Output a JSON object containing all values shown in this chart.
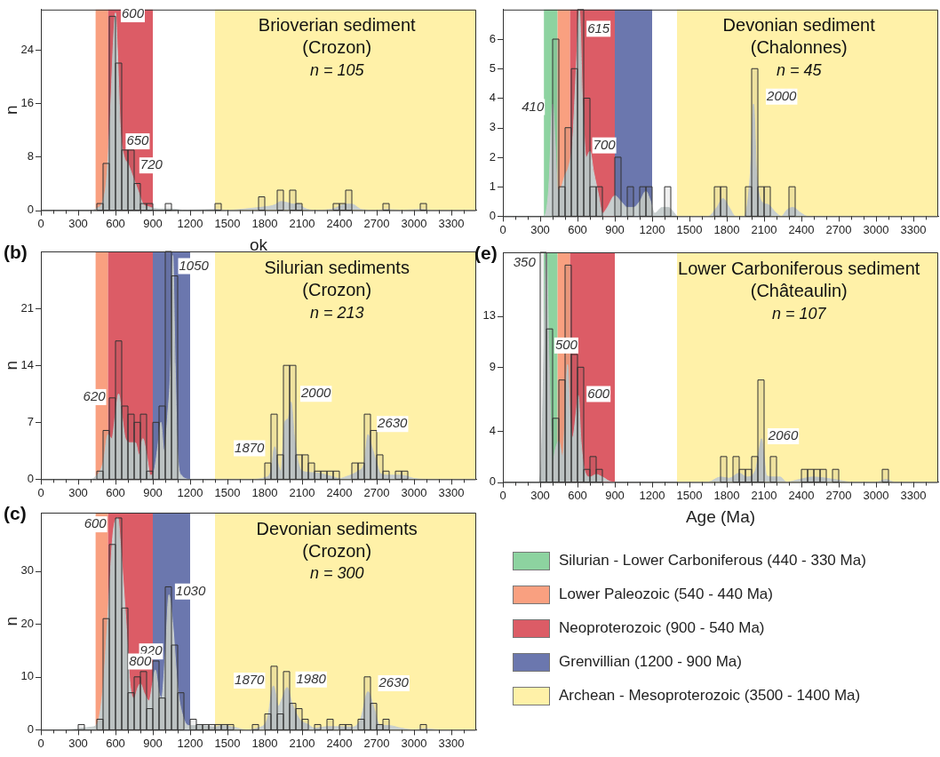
{
  "chart_data": [
    {
      "type": "histogram",
      "title": "Brioverian sediment\n(Crozon)",
      "subtitle": "n = 105",
      "ylabel": "n",
      "xlabel": "ok",
      "color": "#333333",
      "bins": [
        0,
        50,
        100,
        150,
        200,
        250,
        300,
        350,
        400,
        450,
        500,
        550,
        600,
        650,
        700,
        750,
        800,
        850,
        900,
        950,
        1000,
        1050,
        1100,
        1150,
        1200,
        1250,
        1300,
        1350,
        1400,
        1450,
        1500,
        1550,
        1600,
        1650,
        1700,
        1750,
        1800,
        1850,
        1900,
        1950,
        2000,
        2050,
        2100,
        2150,
        2200,
        2250,
        2300,
        2350,
        2400,
        2450,
        2500,
        2550,
        2600,
        2650,
        2700,
        2750,
        2800,
        2850,
        2900,
        2950,
        3000,
        3050,
        3100,
        3150,
        3200,
        3250,
        3300,
        3350,
        3400,
        3450,
        3500
      ],
      "values": [
        0,
        0,
        0,
        0,
        0,
        0,
        0,
        0,
        0,
        1,
        7,
        29,
        22,
        9,
        9,
        4,
        1,
        1,
        0,
        0,
        1,
        0,
        0,
        0,
        0,
        0,
        0,
        0,
        1,
        0,
        0,
        0,
        0,
        0,
        0,
        2,
        0,
        0,
        3,
        0,
        3,
        1,
        0,
        0,
        0,
        0,
        0,
        1,
        1,
        3,
        0,
        0,
        0,
        0,
        0,
        1,
        0,
        0,
        0,
        0,
        0,
        1,
        0,
        0,
        0,
        0,
        0,
        0,
        0,
        0
      ],
      "series": [
        {
          "type": "area",
          "color": "#c8cfcf",
          "x": [
            0,
            400,
            450,
            500,
            530,
            560,
            585,
            600,
            615,
            640,
            670,
            700,
            740,
            780,
            820,
            870,
            950,
            1050,
            1150,
            1400,
            1500,
            1700,
            1800,
            1880,
            1930,
            1990,
            2030,
            2070,
            2120,
            2200,
            2350,
            2450,
            2500,
            2580,
            2700,
            2780,
            2900,
            3050,
            3150,
            3500
          ],
          "values": [
            0,
            0,
            0.3,
            1.5,
            5,
            15,
            26,
            29.5,
            24,
            12,
            8,
            7,
            5,
            3,
            1,
            0.5,
            0.2,
            0.2,
            0,
            0.1,
            0,
            0.3,
            0.5,
            0.8,
            1.3,
            1.1,
            0.9,
            1,
            0.3,
            0,
            0.2,
            0.9,
            0.9,
            0.1,
            0,
            0.1,
            0,
            0.1,
            0,
            0
          ]
        }
      ],
      "xlim": [
        0,
        3500
      ],
      "xticks": [
        0,
        {
          "value": 100,
          "label": null
        },
        {
          "value": 200,
          "label": null
        },
        300,
        {
          "value": 400,
          "label": null
        },
        {
          "value": 500,
          "label": null
        },
        600,
        {
          "value": 700,
          "label": null
        },
        {
          "value": 800,
          "label": null
        },
        900,
        {
          "value": 1000,
          "label": null
        },
        {
          "value": 1100,
          "label": null
        },
        1200,
        {
          "value": 1300,
          "label": null
        },
        {
          "value": 1400,
          "label": null
        },
        1500,
        {
          "value": 1600,
          "label": null
        },
        {
          "value": 1700,
          "label": null
        },
        1800,
        {
          "value": 1900,
          "label": null
        },
        {
          "value": 2000,
          "label": null
        },
        2100,
        {
          "value": 2200,
          "label": null
        },
        {
          "value": 2300,
          "label": null
        },
        2400,
        {
          "value": 2500,
          "label": null
        },
        {
          "value": 2600,
          "label": null
        },
        2700,
        {
          "value": 2800,
          "label": null
        },
        {
          "value": 2900,
          "label": null
        },
        3000,
        {
          "value": 3100,
          "label": null
        },
        {
          "value": 3200,
          "label": null
        },
        3300,
        {
          "value": 3400,
          "label": null
        }
      ],
      "ylim": [
        0,
        30
      ],
      "yticks": [
        0,
        8,
        16,
        24
      ],
      "bands": [
        {
          "axis": "x",
          "from": 440,
          "to": 540,
          "color": "#f9a080"
        },
        {
          "axis": "x",
          "from": 540,
          "to": 900,
          "color": "#dc5c66"
        },
        {
          "axis": "x",
          "from": 1400,
          "to": 3500,
          "color": "#fff1a8"
        }
      ],
      "annotations": [
        {
          "text": "600",
          "x": 739,
          "y": 29.3
        },
        {
          "text": "650",
          "x": 778,
          "y": 10.3
        },
        {
          "text": "720",
          "x": 888,
          "y": 6.7
        }
      ]
    },
    {
      "type": "histogram",
      "title": "Silurian sediments\n(Crozon)",
      "subtitle": "n = 213",
      "ylabel": "n",
      "color": "#333333",
      "bins": [
        0,
        50,
        100,
        150,
        200,
        250,
        300,
        350,
        400,
        450,
        500,
        550,
        600,
        650,
        700,
        750,
        800,
        850,
        900,
        950,
        1000,
        1050,
        1100,
        1150,
        1200,
        1250,
        1300,
        1350,
        1400,
        1450,
        1500,
        1550,
        1600,
        1650,
        1700,
        1750,
        1800,
        1850,
        1900,
        1950,
        2000,
        2050,
        2100,
        2150,
        2200,
        2250,
        2300,
        2350,
        2400,
        2450,
        2500,
        2550,
        2600,
        2650,
        2700,
        2750,
        2800,
        2850,
        2900,
        2950,
        3000,
        3050,
        3100,
        3150,
        3200,
        3250,
        3300,
        3350,
        3400,
        3450,
        3500
      ],
      "values": [
        0,
        0,
        0,
        0,
        0,
        0,
        0,
        0,
        0,
        1,
        6,
        10,
        17,
        9,
        8,
        7,
        8,
        1,
        7,
        9,
        28,
        25,
        0,
        0,
        0,
        0,
        0,
        0,
        0,
        0,
        0,
        0,
        0,
        0,
        0,
        0,
        2,
        8,
        3,
        14,
        14,
        3,
        3,
        2,
        1,
        1,
        1,
        1,
        0,
        0,
        2,
        2,
        8,
        6,
        3,
        1,
        0,
        1,
        1,
        0,
        0,
        0,
        0,
        0,
        0,
        0,
        0,
        0,
        0,
        0
      ],
      "series": [
        {
          "type": "area",
          "color": "#c8cfcf",
          "x": [
            0,
            400,
            430,
            500,
            540,
            570,
            600,
            625,
            650,
            680,
            720,
            760,
            790,
            820,
            850,
            880,
            910,
            940,
            965,
            990,
            1020,
            1045,
            1060,
            1080,
            1100,
            1130,
            1200,
            1700,
            1800,
            1850,
            1880,
            1905,
            1930,
            1960,
            1990,
            2010,
            2040,
            2070,
            2100,
            2200,
            2350,
            2400,
            2450,
            2550,
            2600,
            2630,
            2660,
            2700,
            2730,
            2800,
            2900,
            3000,
            3100,
            3500
          ],
          "values": [
            0,
            0,
            0.2,
            2,
            5.5,
            5,
            8,
            10.5,
            8,
            5,
            4.5,
            4.5,
            3,
            5,
            3,
            0.5,
            1,
            4,
            7,
            3.5,
            8,
            15,
            27.5,
            14,
            3,
            0.5,
            0,
            0,
            0.2,
            1,
            4,
            2,
            1,
            7,
            7.5,
            9.5,
            5,
            2,
            1,
            0.8,
            0.3,
            0.1,
            0.3,
            1,
            2,
            5.5,
            4,
            2,
            0.7,
            0.5,
            0.5,
            0.1,
            0,
            0
          ]
        }
      ],
      "xlim": [
        0,
        3500
      ],
      "xticks": [
        0,
        {
          "value": 100,
          "label": null
        },
        {
          "value": 200,
          "label": null
        },
        300,
        {
          "value": 400,
          "label": null
        },
        {
          "value": 500,
          "label": null
        },
        600,
        {
          "value": 700,
          "label": null
        },
        {
          "value": 800,
          "label": null
        },
        900,
        {
          "value": 1000,
          "label": null
        },
        {
          "value": 1100,
          "label": null
        },
        1200,
        {
          "value": 1300,
          "label": null
        },
        {
          "value": 1400,
          "label": null
        },
        1500,
        {
          "value": 1600,
          "label": null
        },
        {
          "value": 1700,
          "label": null
        },
        1800,
        {
          "value": 1900,
          "label": null
        },
        {
          "value": 2000,
          "label": null
        },
        2100,
        {
          "value": 2200,
          "label": null
        },
        {
          "value": 2300,
          "label": null
        },
        2400,
        {
          "value": 2500,
          "label": null
        },
        {
          "value": 2600,
          "label": null
        },
        2700,
        {
          "value": 2800,
          "label": null
        },
        {
          "value": 2900,
          "label": null
        },
        3000,
        {
          "value": 3100,
          "label": null
        },
        {
          "value": 3200,
          "label": null
        },
        3300,
        {
          "value": 3400,
          "label": null
        }
      ],
      "ylim": [
        0,
        28
      ],
      "yticks": [
        0,
        7,
        14,
        21
      ],
      "bands": [
        {
          "axis": "x",
          "from": 440,
          "to": 540,
          "color": "#f9a080"
        },
        {
          "axis": "x",
          "from": 540,
          "to": 900,
          "color": "#dc5c66"
        },
        {
          "axis": "x",
          "from": 900,
          "to": 1200,
          "color": "#6b77ae"
        },
        {
          "axis": "x",
          "from": 1400,
          "to": 3500,
          "color": "#fff1a8"
        }
      ],
      "annotations": [
        "(b)",
        {
          "text": "620",
          "x": 429,
          "y": 10.1
        },
        {
          "text": "1050",
          "x": 1230,
          "y": 26.2
        },
        {
          "text": "2000",
          "x": 2212,
          "y": 10.5
        },
        {
          "text": "1870",
          "x": 1677,
          "y": 3.8
        },
        {
          "text": "2630",
          "x": 2827,
          "y": 6.8
        }
      ]
    },
    {
      "type": "histogram",
      "title": "Devonian sediments\n(Crozon)",
      "subtitle": "n = 300",
      "ylabel": "n",
      "color": "#333333",
      "bins": [
        0,
        50,
        100,
        150,
        200,
        250,
        300,
        350,
        400,
        450,
        500,
        550,
        600,
        650,
        700,
        750,
        800,
        850,
        900,
        950,
        1000,
        1050,
        1100,
        1150,
        1200,
        1250,
        1300,
        1350,
        1400,
        1450,
        1500,
        1550,
        1600,
        1650,
        1700,
        1750,
        1800,
        1850,
        1900,
        1950,
        2000,
        2050,
        2100,
        2150,
        2200,
        2250,
        2300,
        2350,
        2400,
        2450,
        2500,
        2550,
        2600,
        2650,
        2700,
        2750,
        2800,
        2850,
        2900,
        2950,
        3000,
        3050,
        3100,
        3150,
        3200,
        3250,
        3300,
        3350,
        3400,
        3450,
        3500
      ],
      "values": [
        0,
        0,
        0,
        0,
        0,
        0,
        1,
        0,
        0,
        2,
        21,
        35,
        40,
        23,
        7,
        10,
        11,
        4,
        13,
        6,
        27,
        16,
        7,
        0,
        2,
        1,
        1,
        1,
        1,
        1,
        1,
        0,
        0,
        0,
        1,
        0,
        3,
        12,
        3,
        11,
        5,
        4,
        2,
        0,
        1,
        0,
        2,
        0,
        1,
        1,
        0,
        2,
        10,
        5,
        1,
        2,
        0,
        0,
        0,
        0,
        0,
        1,
        0,
        0,
        0,
        0,
        0,
        0,
        0,
        0
      ],
      "series": [
        {
          "type": "area",
          "color": "#c8cfcf",
          "x": [
            0,
            200,
            300,
            400,
            450,
            500,
            540,
            580,
            620,
            640,
            680,
            720,
            750,
            780,
            800,
            830,
            870,
            900,
            920,
            950,
            970,
            1000,
            1030,
            1060,
            1100,
            1150,
            1200,
            1300,
            1400,
            1450,
            1550,
            1650,
            1750,
            1820,
            1870,
            1910,
            1940,
            1980,
            2020,
            2080,
            2150,
            2200,
            2300,
            2400,
            2500,
            2570,
            2630,
            2680,
            2720,
            2800,
            2900,
            3000,
            3100,
            3200,
            3500
          ],
          "values": [
            0,
            0,
            0.2,
            0.5,
            1,
            8,
            22,
            37,
            40,
            35,
            22,
            8,
            6,
            8,
            8.7,
            7,
            5.5,
            9,
            11.3,
            7,
            6,
            14,
            25.5,
            20,
            8,
            2,
            0.8,
            0.8,
            0.5,
            0.8,
            0.5,
            0,
            0.4,
            2,
            8.3,
            4.5,
            6,
            8,
            5,
            2,
            1,
            0.3,
            0.6,
            0.6,
            0.5,
            2,
            7.2,
            4,
            1,
            0.8,
            0.3,
            0,
            0.2,
            0,
            0
          ]
        }
      ],
      "xlim": [
        0,
        3500
      ],
      "xticks": [
        0,
        {
          "value": 100,
          "label": null
        },
        {
          "value": 200,
          "label": null
        },
        300,
        {
          "value": 400,
          "label": null
        },
        {
          "value": 500,
          "label": null
        },
        600,
        {
          "value": 700,
          "label": null
        },
        {
          "value": 800,
          "label": null
        },
        900,
        {
          "value": 1000,
          "label": null
        },
        {
          "value": 1100,
          "label": null
        },
        1200,
        {
          "value": 1300,
          "label": null
        },
        {
          "value": 1400,
          "label": null
        },
        1500,
        {
          "value": 1600,
          "label": null
        },
        {
          "value": 1700,
          "label": null
        },
        1800,
        {
          "value": 1900,
          "label": null
        },
        {
          "value": 2000,
          "label": null
        },
        2100,
        {
          "value": 2200,
          "label": null
        },
        {
          "value": 2300,
          "label": null
        },
        2400,
        {
          "value": 2500,
          "label": null
        },
        {
          "value": 2600,
          "label": null
        },
        2700,
        {
          "value": 2800,
          "label": null
        },
        {
          "value": 2900,
          "label": null
        },
        3000,
        {
          "value": 3100,
          "label": null
        },
        {
          "value": 3200,
          "label": null
        },
        3300,
        {
          "value": 3400,
          "label": null
        }
      ],
      "ylim": [
        0,
        41
      ],
      "yticks": [
        0,
        10,
        20,
        30
      ],
      "bands": [
        {
          "axis": "x",
          "from": 440,
          "to": 540,
          "color": "#f9a080"
        },
        {
          "axis": "x",
          "from": 540,
          "to": 900,
          "color": "#dc5c66"
        },
        {
          "axis": "x",
          "from": 900,
          "to": 1200,
          "color": "#6b77ae"
        },
        {
          "axis": "x",
          "from": 1400,
          "to": 3500,
          "color": "#fff1a8"
        }
      ],
      "annotations": [
        "(c)",
        {
          "text": "600",
          "x": 437,
          "y": 38.8
        },
        {
          "text": "1030",
          "x": 1204,
          "y": 26.1
        },
        {
          "text": "920",
          "x": 886,
          "y": 14.8
        },
        {
          "text": "800",
          "x": 798,
          "y": 12.9
        },
        {
          "text": "1870",
          "x": 1677,
          "y": 9.3
        },
        {
          "text": "1980",
          "x": 2173,
          "y": 9.5
        },
        {
          "text": "2630",
          "x": 2837,
          "y": 8.8
        }
      ]
    },
    {
      "type": "histogram",
      "title": "Devonian sediment\n(Chalonnes)",
      "subtitle": "n = 45",
      "color": "#333333",
      "bins": [
        0,
        50,
        100,
        150,
        200,
        250,
        300,
        350,
        400,
        450,
        500,
        550,
        600,
        650,
        700,
        750,
        800,
        850,
        900,
        950,
        1000,
        1050,
        1100,
        1150,
        1200,
        1250,
        1300,
        1350,
        1400,
        1450,
        1500,
        1550,
        1600,
        1650,
        1700,
        1750,
        1800,
        1850,
        1900,
        1950,
        2000,
        2050,
        2100,
        2150,
        2200,
        2250,
        2300,
        2350,
        2400,
        2450,
        2500,
        2550,
        2600,
        2650,
        2700,
        2750,
        2800,
        2850,
        2900,
        2950,
        3000,
        3050,
        3100,
        3150,
        3200,
        3250,
        3300,
        3350,
        3400,
        3450,
        3500
      ],
      "values": [
        0,
        0,
        0,
        0,
        0,
        0,
        0,
        0,
        6,
        1,
        3,
        5,
        7,
        4,
        1,
        1,
        0,
        0,
        2,
        0,
        1,
        0,
        1,
        1,
        0,
        0,
        1,
        0,
        0,
        0,
        0,
        0,
        0,
        0,
        1,
        1,
        0,
        0,
        0,
        1,
        5,
        1,
        1,
        0,
        0,
        0,
        1,
        0,
        0,
        0,
        0,
        0,
        0,
        0,
        0,
        0,
        0,
        0,
        0,
        0,
        0,
        0,
        0,
        0,
        0,
        0,
        0,
        0,
        0,
        0
      ],
      "series": [
        {
          "type": "area",
          "color": "#c8cfcf",
          "x": [
            0,
            330,
            370,
            400,
            420,
            440,
            470,
            500,
            530,
            560,
            590,
            615,
            640,
            670,
            700,
            730,
            770,
            800,
            840,
            900,
            950,
            1000,
            1050,
            1100,
            1150,
            1180,
            1220,
            1280,
            1330,
            1380,
            1400,
            1650,
            1720,
            1770,
            1820,
            1870,
            1940,
            1990,
            2015,
            2040,
            2080,
            2130,
            2200,
            2240,
            2280,
            2330,
            2400,
            2450,
            3500
          ],
          "values": [
            0,
            0,
            1,
            3.8,
            2.5,
            0.9,
            1,
            1.4,
            1.7,
            2.5,
            5,
            7,
            4,
            2,
            2.2,
            1.5,
            0.7,
            0.1,
            0.3,
            0.7,
            0.5,
            0.3,
            0.3,
            0.5,
            0.85,
            0.6,
            0.1,
            0.3,
            0.3,
            0.1,
            0,
            0,
            0.3,
            0.6,
            0.3,
            0,
            0,
            1.5,
            3.8,
            1.5,
            0.5,
            0.4,
            0.1,
            0,
            0.2,
            0.3,
            0.1,
            0,
            0
          ]
        }
      ],
      "xlim": [
        0,
        3500
      ],
      "xticks": [
        0,
        {
          "value": 100,
          "label": null
        },
        {
          "value": 200,
          "label": null
        },
        300,
        {
          "value": 400,
          "label": null
        },
        {
          "value": 500,
          "label": null
        },
        600,
        {
          "value": 700,
          "label": null
        },
        {
          "value": 800,
          "label": null
        },
        900,
        {
          "value": 1000,
          "label": null
        },
        {
          "value": 1100,
          "label": null
        },
        1200,
        {
          "value": 1300,
          "label": null
        },
        {
          "value": 1400,
          "label": null
        },
        1500,
        {
          "value": 1600,
          "label": null
        },
        {
          "value": 1700,
          "label": null
        },
        1800,
        {
          "value": 1900,
          "label": null
        },
        {
          "value": 2000,
          "label": null
        },
        2100,
        {
          "value": 2200,
          "label": null
        },
        {
          "value": 2300,
          "label": null
        },
        2400,
        {
          "value": 2500,
          "label": null
        },
        {
          "value": 2600,
          "label": null
        },
        2700,
        {
          "value": 2800,
          "label": null
        },
        {
          "value": 2900,
          "label": null
        },
        3000,
        {
          "value": 3100,
          "label": null
        },
        {
          "value": 3200,
          "label": null
        },
        3300,
        {
          "value": 3400,
          "label": null
        }
      ],
      "ylim": [
        0,
        7
      ],
      "yticks": [
        0,
        1,
        2,
        3,
        4,
        5,
        6
      ],
      "bands": [
        {
          "axis": "x",
          "from": 330,
          "to": 440,
          "color": "#8dd3a0"
        },
        {
          "axis": "x",
          "from": 440,
          "to": 540,
          "color": "#f9a080"
        },
        {
          "axis": "x",
          "from": 540,
          "to": 900,
          "color": "#dc5c66"
        },
        {
          "axis": "x",
          "from": 900,
          "to": 1200,
          "color": "#6b77ae"
        },
        {
          "axis": "x",
          "from": 1400,
          "to": 3500,
          "color": "#fff1a8"
        }
      ],
      "annotations": [
        {
          "text": "410",
          "x": 241,
          "y": 3.7
        },
        {
          "text": "615",
          "x": 769,
          "y": 6.35
        },
        {
          "text": "700",
          "x": 815,
          "y": 2.4
        },
        {
          "text": "2000",
          "x": 2241,
          "y": 4.05
        }
      ]
    },
    {
      "type": "histogram",
      "title": "Lower Carboniferous sediment\n(Châteaulin)",
      "subtitle": "n = 107",
      "xlabel": "Age (Ma)",
      "color": "#333333",
      "bins": [
        0,
        50,
        100,
        150,
        200,
        250,
        300,
        350,
        400,
        450,
        500,
        550,
        600,
        650,
        700,
        750,
        800,
        850,
        900,
        950,
        1000,
        1050,
        1100,
        1150,
        1200,
        1250,
        1300,
        1350,
        1400,
        1450,
        1500,
        1550,
        1600,
        1650,
        1700,
        1750,
        1800,
        1850,
        1900,
        1950,
        2000,
        2050,
        2100,
        2150,
        2200,
        2250,
        2300,
        2350,
        2400,
        2450,
        2500,
        2550,
        2600,
        2650,
        2700,
        2750,
        2800,
        2850,
        2900,
        2950,
        3000,
        3050,
        3100,
        3150,
        3200,
        3250,
        3300,
        3350,
        3400,
        3450,
        3500
      ],
      "values": [
        0,
        0,
        0,
        0,
        0,
        0,
        18,
        12,
        5,
        8,
        17,
        10,
        9,
        1,
        2,
        1,
        0,
        0,
        0,
        0,
        0,
        0,
        0,
        0,
        0,
        0,
        0,
        0,
        0,
        0,
        0,
        0,
        0,
        0,
        0,
        2,
        0,
        2,
        1,
        1,
        2,
        8,
        0,
        2,
        0,
        0,
        0,
        0,
        1,
        1,
        1,
        1,
        0,
        1,
        0,
        0,
        0,
        0,
        0,
        0,
        0,
        1,
        0,
        0,
        0,
        0,
        0,
        0,
        0,
        0
      ],
      "series": [
        {
          "type": "area",
          "color": "#c8cfcf",
          "x": [
            0,
            290,
            310,
            330,
            350,
            370,
            390,
            400,
            420,
            450,
            480,
            500,
            520,
            540,
            560,
            590,
            605,
            630,
            660,
            700,
            750,
            800,
            880,
            1650,
            1750,
            1820,
            1900,
            1960,
            2030,
            2060,
            2080,
            2100,
            2120,
            2180,
            2230,
            2280,
            2380,
            2500,
            2600,
            2700,
            2800,
            3000,
            3080,
            3150,
            3500
          ],
          "values": [
            0,
            0,
            2,
            10,
            18,
            10,
            3,
            1.5,
            2.5,
            3.2,
            2,
            5,
            9.2,
            5,
            3.5,
            5.5,
            6.8,
            3,
            0.8,
            0.4,
            0.6,
            0.4,
            0,
            0,
            0.4,
            0.3,
            0.7,
            0.4,
            0.9,
            2.5,
            3.4,
            2,
            0.5,
            0.4,
            0.4,
            0,
            0.2,
            0.4,
            0.3,
            0.15,
            0,
            0,
            0.2,
            0,
            0
          ]
        }
      ],
      "xlim": [
        0,
        3500
      ],
      "xticks": [
        0,
        {
          "value": 100,
          "label": null
        },
        {
          "value": 200,
          "label": null
        },
        300,
        {
          "value": 400,
          "label": null
        },
        {
          "value": 500,
          "label": null
        },
        600,
        {
          "value": 700,
          "label": null
        },
        {
          "value": 800,
          "label": null
        },
        900,
        {
          "value": 1000,
          "label": null
        },
        {
          "value": 1100,
          "label": null
        },
        1200,
        {
          "value": 1300,
          "label": null
        },
        {
          "value": 1400,
          "label": null
        },
        1500,
        {
          "value": 1600,
          "label": null
        },
        {
          "value": 1700,
          "label": null
        },
        1800,
        {
          "value": 1900,
          "label": null
        },
        {
          "value": 2000,
          "label": null
        },
        2100,
        {
          "value": 2200,
          "label": null
        },
        {
          "value": 2300,
          "label": null
        },
        2400,
        {
          "value": 2500,
          "label": null
        },
        {
          "value": 2600,
          "label": null
        },
        2700,
        {
          "value": 2800,
          "label": null
        },
        {
          "value": 2900,
          "label": null
        },
        3000,
        {
          "value": 3100,
          "label": null
        },
        {
          "value": 3200,
          "label": null
        },
        3300,
        {
          "value": 3400,
          "label": null
        }
      ],
      "ylim": [
        0,
        18
      ],
      "yticks": [
        0,
        4,
        9,
        13
      ],
      "bands": [
        {
          "axis": "x",
          "from": 330,
          "to": 440,
          "color": "#8dd3a0"
        },
        {
          "axis": "x",
          "from": 440,
          "to": 540,
          "color": "#f9a080"
        },
        {
          "axis": "x",
          "from": 540,
          "to": 900,
          "color": "#dc5c66"
        },
        {
          "axis": "x",
          "from": 1400,
          "to": 3500,
          "color": "#fff1a8"
        }
      ],
      "annotations": [
        "(e)",
        {
          "text": "350",
          "x": 173,
          "y": 17.2
        },
        {
          "text": "500",
          "x": 510,
          "y": 10.7
        },
        {
          "text": "600",
          "x": 769,
          "y": 6.9
        },
        {
          "text": "2060",
          "x": 2254,
          "y": 3.6
        }
      ]
    },
    {
      "type": "other",
      "annotations": [
        "Silurian - Lower Carboniferous (440 - 330 Ma)",
        "Lower Paleozoic (540 - 440 Ma)",
        "Neoproterozoic (900 - 540 Ma)",
        "Grenvillian (1200 - 900 Ma)",
        "Archean - Mesoproterozoic (3500 - 1400 Ma)"
      ]
    }
  ]
}
